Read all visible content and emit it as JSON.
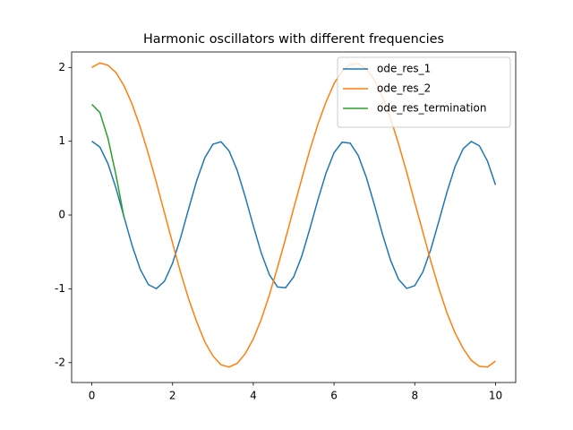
{
  "chart_data": {
    "type": "line",
    "title": "Harmonic oscillators with different frequencies",
    "x": [
      0,
      0.2,
      0.4,
      0.6,
      0.8,
      1,
      1.2,
      1.4,
      1.6,
      1.8,
      2,
      2.2,
      2.4,
      2.6,
      2.8,
      3,
      3.2,
      3.4,
      3.6,
      3.8,
      4,
      4.2,
      4.4,
      4.6,
      4.8,
      5,
      5.2,
      5.4,
      5.6,
      5.8,
      6,
      6.2,
      6.4,
      6.6,
      6.8,
      7,
      7.2,
      7.4,
      7.6,
      7.8,
      8,
      8.2,
      8.4,
      8.6,
      8.8,
      9,
      9.2,
      9.4,
      9.6,
      9.8,
      10
    ],
    "series": [
      {
        "name": "ode_res_1",
        "color": "#1f77b4",
        "values": [
          1,
          0.921,
          0.697,
          0.362,
          -0.029,
          -0.416,
          -0.737,
          -0.942,
          -0.998,
          -0.897,
          -0.654,
          -0.307,
          0.087,
          0.469,
          0.776,
          0.96,
          0.993,
          0.869,
          0.608,
          0.248,
          -0.146,
          -0.519,
          -0.811,
          -0.975,
          -0.985,
          -0.839,
          -0.559,
          -0.188,
          0.204,
          0.566,
          0.844,
          0.987,
          0.973,
          0.806,
          0.51,
          0.137,
          -0.26,
          -0.612,
          -0.873,
          -0.994,
          -0.958,
          -0.772,
          -0.461,
          -0.077,
          0.315,
          0.66,
          0.9,
          0.997,
          0.938,
          0.731,
          0.408
        ]
      },
      {
        "name": "ode_res_2",
        "color": "#ff7f0e",
        "values": [
          2,
          2.06,
          2.03,
          1.93,
          1.75,
          1.5,
          1.19,
          0.83,
          0.44,
          0.03,
          -0.38,
          -0.78,
          -1.14,
          -1.45,
          -1.72,
          -1.91,
          -2.03,
          -2.06,
          -2.01,
          -1.88,
          -1.68,
          -1.41,
          -1.08,
          -0.71,
          -0.32,
          0.09,
          0.49,
          0.88,
          1.23,
          1.53,
          1.78,
          1.95,
          2.04,
          2.05,
          1.98,
          1.83,
          1.6,
          1.31,
          0.96,
          0.58,
          0.17,
          -0.23,
          -0.63,
          -1,
          -1.33,
          -1.6,
          -1.81,
          -1.97,
          -2.05,
          -2.06,
          -1.98
        ]
      },
      {
        "name": "ode_res_termination",
        "color": "#2ca02c",
        "x": [
          0,
          0.2,
          0.4,
          0.6,
          0.8
        ],
        "values": [
          1.5,
          1.39,
          1.04,
          0.54,
          -0.04
        ]
      }
    ],
    "xlim": [
      -0.5,
      10.5
    ],
    "ylim": [
      -2.27,
      2.21
    ],
    "xticks": [
      0,
      2,
      4,
      6,
      8,
      10
    ],
    "yticks": [
      -2,
      -1,
      0,
      1,
      2
    ],
    "grid": false,
    "legend": "upper right"
  }
}
